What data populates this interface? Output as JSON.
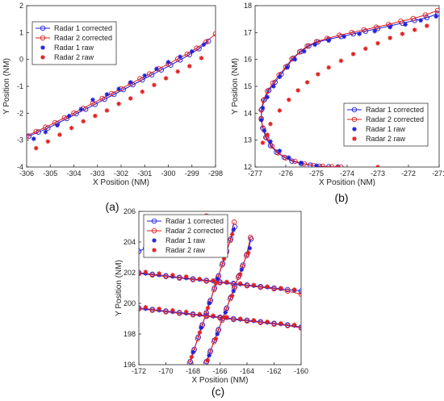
{
  "legend_entries": [
    "Radar 1 corrected",
    "Radar 2 corrected",
    "Radar 1 raw",
    "Radar 2 raw"
  ],
  "colors": {
    "radar1": "#1f1fd8",
    "radar2": "#e02020"
  },
  "chart_data": [
    {
      "panel": "(a)",
      "type": "line",
      "xlabel": "X Position (NM)",
      "ylabel": "Y Position (NM)",
      "xlim": [
        -306,
        -298
      ],
      "ylim": [
        -4,
        2
      ],
      "xticks": [
        -306,
        -305,
        -304,
        -303,
        -302,
        -301,
        -300,
        -299,
        -298
      ],
      "yticks": [
        -4,
        -3,
        -2,
        -1,
        0,
        1,
        2
      ],
      "legend": "top-left",
      "grid": false,
      "series": [
        {
          "name": "Radar 1 corrected",
          "style": "circle-line",
          "x": [
            -305.9,
            -305.5,
            -305.1,
            -304.7,
            -304.3,
            -303.9,
            -303.5,
            -303.1,
            -302.7,
            -302.3,
            -301.9,
            -301.5,
            -301.1,
            -300.7,
            -300.3,
            -299.9,
            -299.5,
            -299.1,
            -298.7,
            -298.3
          ],
          "y": [
            -2.85,
            -2.7,
            -2.55,
            -2.38,
            -2.2,
            -2.02,
            -1.85,
            -1.67,
            -1.48,
            -1.3,
            -1.12,
            -0.94,
            -0.76,
            -0.57,
            -0.39,
            -0.21,
            -0.02,
            0.18,
            0.4,
            0.68
          ]
        },
        {
          "name": "Radar 2 corrected",
          "style": "circle-line",
          "x": [
            -306.0,
            -305.6,
            -305.2,
            -304.8,
            -304.4,
            -304.0,
            -303.6,
            -303.2,
            -302.8,
            -302.4,
            -302.0,
            -301.6,
            -301.2,
            -300.8,
            -300.4,
            -300.0,
            -299.6,
            -299.2,
            -298.8,
            -298.4,
            -298.0
          ],
          "y": [
            -2.85,
            -2.68,
            -2.52,
            -2.35,
            -2.17,
            -1.99,
            -1.82,
            -1.63,
            -1.45,
            -1.27,
            -1.09,
            -0.9,
            -0.72,
            -0.54,
            -0.35,
            -0.17,
            0.02,
            0.2,
            0.42,
            0.65,
            0.95
          ]
        },
        {
          "name": "Radar 1 raw",
          "style": "star",
          "x": [
            -305.7,
            -305.2,
            -304.7,
            -304.2,
            -303.7,
            -303.2,
            -302.6,
            -302.1,
            -301.6,
            -301.0,
            -300.5,
            -300.0,
            -299.5,
            -299.0,
            -298.5
          ],
          "y": [
            -2.95,
            -2.7,
            -2.45,
            -2.1,
            -1.85,
            -1.5,
            -1.3,
            -1.1,
            -0.85,
            -0.6,
            -0.35,
            -0.1,
            0.1,
            0.3,
            0.55
          ]
        },
        {
          "name": "Radar 2 raw",
          "style": "star",
          "x": [
            -305.6,
            -305.1,
            -304.6,
            -304.1,
            -303.6,
            -303.1,
            -302.6,
            -302.1,
            -301.6,
            -301.1,
            -300.6,
            -300.1,
            -299.6,
            -299.1,
            -298.6
          ],
          "y": [
            -3.3,
            -3.05,
            -2.8,
            -2.55,
            -2.3,
            -2.1,
            -1.9,
            -1.65,
            -1.45,
            -1.2,
            -0.95,
            -0.7,
            -0.45,
            -0.25,
            0.05
          ]
        }
      ]
    },
    {
      "panel": "(b)",
      "type": "line",
      "xlabel": "X Position (NM)",
      "ylabel": "Y Position (NM)",
      "xlim": [
        -277,
        -271
      ],
      "ylim": [
        12,
        18
      ],
      "xticks": [
        -277,
        -276,
        -275,
        -274,
        -273,
        -272,
        -271
      ],
      "yticks": [
        12,
        13,
        14,
        15,
        16,
        17,
        18
      ],
      "legend": "bottom-right",
      "grid": false,
      "series": [
        {
          "name": "Radar 1 corrected",
          "style": "circle-line",
          "x": [
            -274.3,
            -274.6,
            -274.9,
            -275.2,
            -275.5,
            -275.8,
            -276.05,
            -276.3,
            -276.5,
            -276.65,
            -276.75,
            -276.8,
            -276.78,
            -276.7,
            -276.55,
            -276.35,
            -276.15,
            -275.95,
            -275.75,
            -275.5,
            -275.25,
            -274.95,
            -274.6,
            -274.2,
            -273.8,
            -273.4,
            -273.0,
            -272.6,
            -272.2,
            -271.8,
            -271.4,
            -271.05
          ],
          "y": [
            12.0,
            12.01,
            12.03,
            12.07,
            12.13,
            12.22,
            12.36,
            12.55,
            12.8,
            13.1,
            13.45,
            13.8,
            14.15,
            14.5,
            14.85,
            15.15,
            15.45,
            15.75,
            16.05,
            16.3,
            16.5,
            16.65,
            16.75,
            16.85,
            16.95,
            17.05,
            17.15,
            17.25,
            17.35,
            17.45,
            17.55,
            17.7
          ]
        },
        {
          "name": "Radar 2 corrected",
          "style": "circle-line",
          "x": [
            -274.2,
            -274.5,
            -274.8,
            -275.1,
            -275.4,
            -275.7,
            -276.0,
            -276.25,
            -276.45,
            -276.62,
            -276.73,
            -276.8,
            -276.8,
            -276.73,
            -276.6,
            -276.42,
            -276.22,
            -276.0,
            -275.8,
            -275.55,
            -275.3,
            -275.0,
            -274.65,
            -274.25,
            -273.85,
            -273.45,
            -273.05,
            -272.65,
            -272.25,
            -271.85,
            -271.45,
            -271.05
          ],
          "y": [
            12.0,
            12.01,
            12.03,
            12.06,
            12.12,
            12.21,
            12.34,
            12.53,
            12.78,
            13.08,
            13.42,
            13.78,
            14.12,
            14.48,
            14.82,
            15.12,
            15.42,
            15.72,
            16.02,
            16.28,
            16.5,
            16.66,
            16.78,
            16.9,
            17.0,
            17.1,
            17.2,
            17.3,
            17.42,
            17.52,
            17.65,
            17.82
          ]
        },
        {
          "name": "Radar 1 raw",
          "style": "star",
          "x": [
            -275.0,
            -275.5,
            -275.9,
            -276.2,
            -276.5,
            -276.7,
            -276.8,
            -276.75,
            -276.6,
            -276.4,
            -276.2,
            -275.95,
            -275.7,
            -275.4,
            -275.05,
            -274.6,
            -274.1,
            -273.6,
            -273.1,
            -272.6,
            -272.1,
            -271.6,
            -271.1
          ],
          "y": [
            12.05,
            12.15,
            12.35,
            12.6,
            12.95,
            13.35,
            13.75,
            14.2,
            14.6,
            15.0,
            15.35,
            15.7,
            16.0,
            16.3,
            16.55,
            16.7,
            16.85,
            16.95,
            17.05,
            17.2,
            17.3,
            17.45,
            17.6
          ]
        },
        {
          "name": "Radar 2 raw",
          "style": "star",
          "x": [
            -276.5,
            -276.2,
            -275.9,
            -275.6,
            -275.3,
            -274.95,
            -274.6,
            -274.2,
            -273.8,
            -273.4,
            -273.0,
            -272.6,
            -272.2,
            -271.8,
            -271.4
          ],
          "y": [
            13.6,
            14.1,
            14.5,
            14.85,
            15.15,
            15.45,
            15.7,
            15.95,
            16.2,
            16.4,
            16.6,
            16.8,
            16.95,
            17.1,
            17.25
          ]
        },
        {
          "name": "Radar 2 raw",
          "style": "star",
          "x": [
            -274.3,
            -273.0,
            -276.6,
            -276.75
          ],
          "y": [
            12.0,
            12.0,
            13.2,
            12.9
          ]
        }
      ]
    },
    {
      "panel": "(c)",
      "type": "line",
      "xlabel": "X Position (NM)",
      "ylabel": "Y Position (NM)",
      "xlim": [
        -172,
        -160
      ],
      "ylim": [
        196,
        206
      ],
      "xticks": [
        -172,
        -170,
        -168,
        -166,
        -164,
        -162,
        -160
      ],
      "yticks": [
        196,
        198,
        200,
        202,
        204,
        206
      ],
      "legend": "top-left",
      "grid": false,
      "series": [
        {
          "name": "Radar 1 corrected",
          "style": "circle-line",
          "x": [
            -172.0,
            -171.0,
            -170.0,
            -169.0,
            -168.0,
            -167.0,
            -166.0,
            -165.0,
            -164.0,
            -163.0,
            -162.0,
            -161.0,
            -160.0
          ],
          "y": [
            202.0,
            201.9,
            201.8,
            201.7,
            201.6,
            201.5,
            201.4,
            201.3,
            201.2,
            201.1,
            201.0,
            200.9,
            200.8
          ]
        },
        {
          "name": "Radar 2 corrected",
          "style": "circle-line",
          "x": [
            -172.0,
            -171.0,
            -170.0,
            -169.0,
            -168.0,
            -167.0,
            -166.0,
            -165.0,
            -164.0,
            -163.0,
            -162.0,
            -161.0,
            -160.0
          ],
          "y": [
            201.95,
            201.85,
            201.75,
            201.65,
            201.55,
            201.45,
            201.35,
            201.25,
            201.15,
            201.05,
            200.95,
            200.8,
            200.6
          ]
        },
        {
          "name": "Radar 1 corrected",
          "style": "circle-line",
          "x": [
            -172.0,
            -171.0,
            -170.0,
            -169.0,
            -168.0,
            -167.0,
            -166.0,
            -165.0,
            -164.0,
            -163.0,
            -162.0,
            -161.0,
            -160.0
          ],
          "y": [
            199.7,
            199.6,
            199.5,
            199.4,
            199.3,
            199.2,
            199.1,
            199.0,
            198.9,
            198.8,
            198.7,
            198.6,
            198.45
          ]
        },
        {
          "name": "Radar 2 corrected",
          "style": "circle-line",
          "x": [
            -172.0,
            -171.0,
            -170.0,
            -169.0,
            -168.0,
            -167.0,
            -166.0,
            -165.0,
            -164.0,
            -163.0,
            -162.0,
            -161.0,
            -160.0
          ],
          "y": [
            199.65,
            199.55,
            199.45,
            199.35,
            199.25,
            199.15,
            199.05,
            198.95,
            198.85,
            198.75,
            198.65,
            198.55,
            198.4
          ]
        },
        {
          "name": "Radar 1 corrected",
          "style": "circle-line",
          "x": [
            -168.2,
            -167.9,
            -167.6,
            -167.3,
            -167.0,
            -166.7,
            -166.4,
            -166.1,
            -165.8,
            -165.5,
            -165.2,
            -164.9
          ],
          "y": [
            196.2,
            197.0,
            197.8,
            198.6,
            199.4,
            200.2,
            201.0,
            201.8,
            202.6,
            203.4,
            204.2,
            205.0
          ]
        },
        {
          "name": "Radar 2 corrected",
          "style": "circle-line",
          "x": [
            -168.25,
            -167.95,
            -167.65,
            -167.35,
            -167.05,
            -166.75,
            -166.45,
            -166.15,
            -165.85,
            -165.55,
            -165.25,
            -164.95
          ],
          "y": [
            196.1,
            196.9,
            197.7,
            198.5,
            199.3,
            200.1,
            200.9,
            201.7,
            202.5,
            203.3,
            204.1,
            205.3
          ]
        },
        {
          "name": "Radar 1 corrected",
          "style": "circle-line",
          "x": [
            -167.0,
            -166.7,
            -166.4,
            -166.1,
            -165.8,
            -165.5,
            -165.2,
            -164.9,
            -164.6,
            -164.3,
            -164.0,
            -163.7
          ],
          "y": [
            196.2,
            196.9,
            197.6,
            198.3,
            199.0,
            199.7,
            200.4,
            201.1,
            201.8,
            202.5,
            203.2,
            204.2
          ]
        },
        {
          "name": "Radar 2 corrected",
          "style": "circle-line",
          "x": [
            -167.05,
            -166.75,
            -166.45,
            -166.15,
            -165.85,
            -165.55,
            -165.25,
            -164.95,
            -164.65,
            -164.35,
            -164.05,
            -163.75
          ],
          "y": [
            196.1,
            196.8,
            197.5,
            198.2,
            198.9,
            199.6,
            200.3,
            201.0,
            201.7,
            202.4,
            203.1,
            204.3
          ]
        },
        {
          "name": "Radar 1 corrected",
          "style": "circle-line",
          "x": [
            -172.0,
            -171.5,
            -171.0,
            -170.5,
            -170.0,
            -169.5,
            -169.0
          ],
          "y": [
            203.4,
            203.6,
            203.9,
            204.3,
            204.7,
            205.0,
            205.4
          ]
        },
        {
          "name": "Radar 2 corrected",
          "style": "circle-line",
          "x": [
            -168.5,
            -168.0,
            -167.5,
            -167.0
          ],
          "y": [
            205.4,
            205.5,
            205.6,
            205.7
          ]
        },
        {
          "name": "Radar 1 raw",
          "style": "star",
          "x": [
            -171.5,
            -170.5,
            -169.5,
            -168.5,
            -167.5,
            -166.5,
            -165.5,
            -164.5,
            -163.5,
            -162.5,
            -161.5,
            -160.5,
            -171.5,
            -170.5,
            -169.5,
            -168.5,
            -167.5,
            -166.5,
            -165.5,
            -164.5,
            -163.5,
            -162.5,
            -161.5,
            -160.5,
            -168.0,
            -167.4,
            -166.8,
            -166.2,
            -165.6,
            -165.0,
            -166.8,
            -166.2,
            -165.6,
            -165.0,
            -164.4,
            -163.8
          ],
          "y": [
            201.95,
            201.85,
            201.75,
            201.65,
            201.55,
            201.45,
            201.35,
            201.25,
            201.15,
            201.05,
            200.95,
            200.85,
            199.65,
            199.55,
            199.45,
            199.35,
            199.25,
            199.15,
            199.05,
            198.95,
            198.85,
            198.75,
            198.65,
            198.55,
            196.8,
            198.4,
            200.0,
            201.6,
            203.2,
            204.8,
            196.6,
            198.0,
            199.4,
            200.8,
            202.2,
            203.6
          ]
        },
        {
          "name": "Radar 2 raw",
          "style": "star",
          "x": [
            -171.5,
            -170.5,
            -169.5,
            -168.5,
            -167.5,
            -166.5,
            -165.5,
            -164.5,
            -163.5,
            -162.5,
            -161.5,
            -160.5,
            -171.5,
            -170.5,
            -169.5,
            -168.5,
            -167.5,
            -166.5,
            -165.5,
            -164.5,
            -163.5,
            -162.5,
            -161.5,
            -160.5,
            -168.1,
            -167.5,
            -166.9,
            -166.3,
            -165.7,
            -165.1,
            -166.9,
            -166.3,
            -165.7,
            -165.1,
            -164.5,
            -163.9
          ],
          "y": [
            202.05,
            201.95,
            201.85,
            201.75,
            201.6,
            201.5,
            201.4,
            201.3,
            201.2,
            201.1,
            201.0,
            200.9,
            199.75,
            199.65,
            199.55,
            199.45,
            199.3,
            199.2,
            199.1,
            199.0,
            198.9,
            198.8,
            198.7,
            198.6,
            196.5,
            198.1,
            199.7,
            201.3,
            202.9,
            204.5,
            196.3,
            197.7,
            199.1,
            200.5,
            201.9,
            203.3
          ]
        }
      ]
    }
  ]
}
